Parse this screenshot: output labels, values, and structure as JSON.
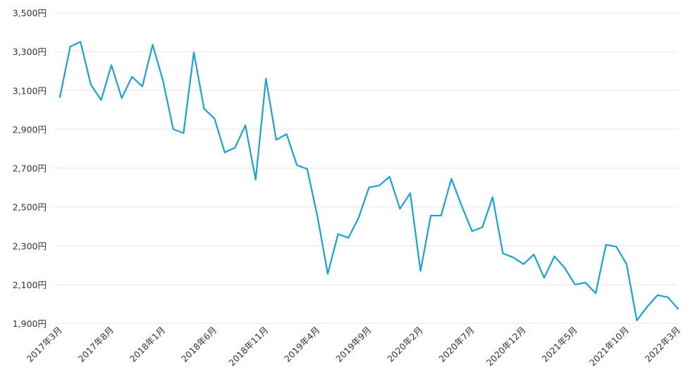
{
  "chart_data": {
    "type": "line",
    "title": "",
    "xlabel": "",
    "ylabel": "",
    "grid": true,
    "legend": "none",
    "ylim": [
      1900,
      3500
    ],
    "y_ticks": [
      "1,900円",
      "2,100円",
      "2,300円",
      "2,500円",
      "2,700円",
      "2,900円",
      "3,100円",
      "3,300円",
      "3,500円"
    ],
    "y_tick_values": [
      1900,
      2100,
      2300,
      2500,
      2700,
      2900,
      3100,
      3300,
      3500
    ],
    "x_tick_labels": [
      "2017年3月",
      "2017年8月",
      "2018年1月",
      "2018年6月",
      "2018年11月",
      "2019年4月",
      "2019年9月",
      "2020年2月",
      "2020年7月",
      "2020年12月",
      "2021年5月",
      "2021年10月",
      "2022年3月"
    ],
    "x_tick_every": 5,
    "line_color": "#1aa3d0",
    "series": [
      {
        "values": [
          3065,
          3325,
          3350,
          3130,
          3050,
          3230,
          3060,
          3170,
          3120,
          3335,
          3150,
          2900,
          2880,
          3295,
          3005,
          2955,
          2780,
          2805,
          2920,
          2640,
          3160,
          2845,
          2875,
          2715,
          2695,
          2450,
          2155,
          2360,
          2340,
          2445,
          2600,
          2610,
          2655,
          2490,
          2570,
          2170,
          2455,
          2455,
          2645,
          2505,
          2375,
          2395,
          2550,
          2260,
          2240,
          2205,
          2255,
          2135,
          2245,
          2185,
          2100,
          2110,
          2055,
          2305,
          2295,
          2205,
          1915,
          1985,
          2045,
          2035,
          1975
        ]
      }
    ]
  }
}
